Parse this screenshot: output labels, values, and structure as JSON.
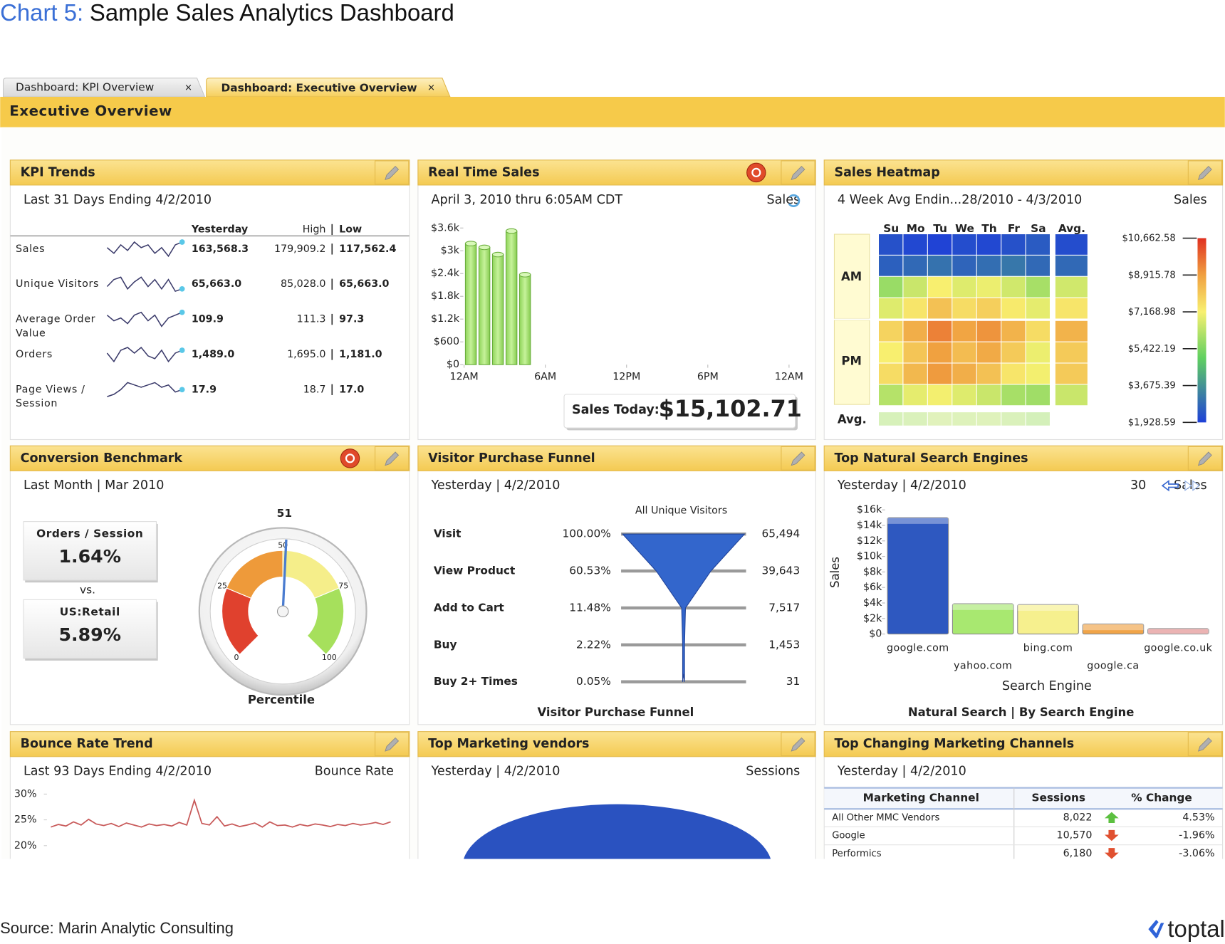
{
  "header": {
    "chart_label": "Chart 5:",
    "title": "Sample Sales Analytics Dashboard"
  },
  "tabs": [
    {
      "label": "Dashboard: KPI Overview",
      "close": "×"
    },
    {
      "label": "Dashboard: Executive Overview",
      "close": "×"
    }
  ],
  "page_title": "Executive Overview",
  "panels": {
    "kpi": {
      "title": "KPI Trends",
      "subtitle": "Last 31 Days Ending 4/2/2010",
      "columns": [
        "Yesterday",
        "High",
        "Low"
      ],
      "rows": [
        {
          "name": [
            "Sales"
          ],
          "yesterday": "163,568.3",
          "high": "179,909.2",
          "low": "117,562.4",
          "trend": [
            5,
            3,
            6,
            4,
            7,
            5,
            6,
            3,
            5,
            2,
            6,
            7
          ]
        },
        {
          "name": [
            "Unique Visitors"
          ],
          "yesterday": "65,663.0",
          "high": "85,028.0",
          "low": "65,663.0",
          "trend": [
            3,
            6,
            7,
            2,
            5,
            7,
            3,
            6,
            2,
            6,
            1,
            2
          ]
        },
        {
          "name": [
            "Average Order",
            "Value"
          ],
          "yesterday": "109.9",
          "high": "111.3",
          "low": "97.3",
          "trend": [
            6,
            4,
            5,
            3,
            6,
            7,
            4,
            6,
            2,
            5,
            6,
            7
          ]
        },
        {
          "name": [
            "Orders"
          ],
          "yesterday": "1,489.0",
          "high": "1,695.0",
          "low": "1,181.0",
          "trend": [
            5,
            2,
            6,
            7,
            5,
            7,
            4,
            3,
            6,
            2,
            5,
            6
          ]
        },
        {
          "name": [
            "Page Views /",
            "Session"
          ],
          "yesterday": "17.9",
          "high": "18.7",
          "low": "17.0",
          "trend": [
            1,
            2,
            4,
            7,
            6,
            5,
            6,
            7,
            5,
            6,
            3,
            4
          ]
        }
      ]
    },
    "realtime": {
      "title": "Real Time Sales",
      "subtitle": "April 3, 2010 thru 6:05AM CDT",
      "measure": "Sales",
      "chart": {
        "type": "bar",
        "x": [
          0.5,
          1.5,
          2.5,
          3.5,
          4.5
        ],
        "values": [
          3190,
          3090,
          2900,
          3520,
          2370
        ],
        "color": "#a8e070",
        "xlim": [
          0,
          24
        ],
        "xticks": [
          {
            "value": 0,
            "label": "12AM"
          },
          {
            "value": 6,
            "label": "6AM"
          },
          {
            "value": 12,
            "label": "12PM"
          },
          {
            "value": 18,
            "label": "6PM"
          },
          {
            "value": 24,
            "label": "12AM"
          }
        ],
        "ylim": [
          0,
          3600
        ],
        "yticks": [
          {
            "value": 0,
            "label": "$0"
          },
          {
            "value": 600,
            "label": "$600"
          },
          {
            "value": 1200,
            "label": "$1.2k"
          },
          {
            "value": 1800,
            "label": "$1.8k"
          },
          {
            "value": 2400,
            "label": "$2.4k"
          },
          {
            "value": 3000,
            "label": "$3k"
          },
          {
            "value": 3600,
            "label": "$3.6k"
          }
        ]
      },
      "today_label": "Sales Today:",
      "today_value": "$15,102.71"
    },
    "heatmap": {
      "title": "Sales Heatmap",
      "subtitle": "4 Week Avg Endin...28/2010 - 4/3/2010",
      "measure": "Sales",
      "chart": {
        "type": "heatmap",
        "columns": [
          "Su",
          "Mo",
          "Tu",
          "We",
          "Th",
          "Fr",
          "Sa",
          "Avg."
        ],
        "row_groups": [
          "AM",
          "PM"
        ],
        "values": [
          [
            2300,
            2100,
            2000,
            2200,
            2100,
            2300,
            2500,
            2200
          ],
          [
            2600,
            2800,
            3000,
            2700,
            2900,
            3100,
            2800,
            2800
          ],
          [
            5800,
            6500,
            7200,
            6800,
            7000,
            6600,
            6000,
            6600
          ],
          [
            6800,
            7400,
            8200,
            7600,
            7900,
            7300,
            6900,
            7400
          ],
          [
            7800,
            8600,
            9400,
            8800,
            9100,
            8500,
            7600,
            8500
          ],
          [
            7200,
            8100,
            8900,
            8300,
            8700,
            8000,
            7000,
            8000
          ],
          [
            7600,
            8400,
            9000,
            8600,
            8200,
            7400,
            7100,
            8000
          ],
          [
            6200,
            6900,
            7100,
            6800,
            6500,
            6000,
            5900,
            6500
          ]
        ],
        "avg_label": "Avg.",
        "avg_row": [
          6000,
          6100,
          6300,
          6200,
          6250,
          6100,
          5900
        ],
        "clim": [
          1928.59,
          10662.58
        ],
        "cticks": [
          {
            "value": 10662.58,
            "label": "$10,662.58"
          },
          {
            "value": 8915.78,
            "label": "$8,915.78"
          },
          {
            "value": 7168.98,
            "label": "$7,168.98"
          },
          {
            "value": 5422.19,
            "label": "$5,422.19"
          },
          {
            "value": 3675.39,
            "label": "$3,675.39"
          },
          {
            "value": 1928.59,
            "label": "$1,928.59"
          }
        ]
      }
    },
    "conversion": {
      "title": "Conversion Benchmark",
      "subtitle": "Last Month | Mar 2010",
      "metric_label": "Orders / Session",
      "metric_value": "1.64%",
      "versus": "vs.",
      "benchmark_label": "US:Retail",
      "benchmark_value": "5.89%",
      "gauge": {
        "type": "gauge",
        "value": 51,
        "range": [
          0,
          100
        ],
        "ticks": [
          0,
          25,
          50,
          75,
          100
        ],
        "label": "Percentile",
        "bands": [
          {
            "from": 0,
            "to": 25,
            "color": "#e0412e"
          },
          {
            "from": 25,
            "to": 50,
            "color": "#ee9a3a"
          },
          {
            "from": 50,
            "to": 75,
            "color": "#f5ee8a"
          },
          {
            "from": 75,
            "to": 100,
            "color": "#a6e05c"
          }
        ]
      }
    },
    "funnel": {
      "title": "Visitor Purchase Funnel",
      "subtitle": "Yesterday | 4/2/2010",
      "column_label": "All Unique Visitors",
      "rows": [
        {
          "stage": "Visit",
          "percent": 100.0,
          "percent_label": "100.00%",
          "count": "65,494"
        },
        {
          "stage": "View Product",
          "percent": 60.53,
          "percent_label": "60.53%",
          "count": "39,643"
        },
        {
          "stage": "Add to Cart",
          "percent": 11.48,
          "percent_label": "11.48%",
          "count": "7,517"
        },
        {
          "stage": "Buy",
          "percent": 2.22,
          "percent_label": "2.22%",
          "count": "1,453"
        },
        {
          "stage": "Buy 2+ Times",
          "percent": 0.05,
          "percent_label": "0.05%",
          "count": "31"
        }
      ],
      "footer": "Visitor Purchase Funnel"
    },
    "search": {
      "title": "Top Natural Search Engines",
      "subtitle": "Yesterday | 4/2/2010",
      "measure": "Sales",
      "count": "30",
      "chart": {
        "type": "bar",
        "categories": [
          "google.com",
          "yahoo.com",
          "bing.com",
          "google.ca",
          "google.co.uk"
        ],
        "values": [
          15000,
          3900,
          3800,
          1300,
          700
        ],
        "colors": [
          "#2e58c0",
          "#a8e870",
          "#f6f08e",
          "#f0a448",
          "#e08a8a"
        ],
        "ylim": [
          0,
          16000
        ],
        "yticks": [
          {
            "value": 0,
            "label": "$0"
          },
          {
            "value": 2000,
            "label": "$2k"
          },
          {
            "value": 4000,
            "label": "$4k"
          },
          {
            "value": 6000,
            "label": "$6k"
          },
          {
            "value": 8000,
            "label": "$8k"
          },
          {
            "value": 10000,
            "label": "$10k"
          },
          {
            "value": 12000,
            "label": "$12k"
          },
          {
            "value": 14000,
            "label": "$14k"
          },
          {
            "value": 16000,
            "label": "$16k"
          }
        ],
        "y_label": "Sales",
        "x_label": "Search Engine"
      },
      "footer": "Natural Search | By Search Engine"
    },
    "bounce": {
      "title": "Bounce Rate Trend",
      "subtitle": "Last 93 Days Ending 4/2/2010",
      "measure": "Bounce Rate",
      "chart": {
        "type": "line",
        "values": [
          23.6,
          24.1,
          23.8,
          24.6,
          24.0,
          25.1,
          24.2,
          23.9,
          24.3,
          23.7,
          24.4,
          24.0,
          23.6,
          24.2,
          23.9,
          24.1,
          23.8,
          24.5,
          24.0,
          28.8,
          24.3,
          24.0,
          25.6,
          23.8,
          24.2,
          23.7,
          24.0,
          24.4,
          23.6,
          24.6,
          23.9,
          24.0,
          23.6,
          24.1,
          23.8,
          24.2,
          24.0,
          23.7,
          24.1,
          23.9,
          24.3,
          24.0,
          24.2,
          24.5,
          24.1,
          24.6
        ],
        "color": "#c85a5a",
        "ylim": [
          20,
          30
        ],
        "yticks": [
          {
            "value": 30,
            "label": "30%"
          },
          {
            "value": 25,
            "label": "25%"
          },
          {
            "value": 20,
            "label": "20%"
          }
        ]
      }
    },
    "vendors": {
      "title": "Top Marketing vendors",
      "subtitle": "Yesterday | 4/2/2010",
      "measure": "Sessions"
    },
    "channels": {
      "title": "Top Changing Marketing Channels",
      "subtitle": "Yesterday | 4/2/2010",
      "columns": [
        "Marketing Channel",
        "Sessions",
        "% Change"
      ],
      "rows": [
        {
          "channel": "All Other MMC Vendors",
          "sessions": "8,022",
          "direction": "up",
          "change": "4.53%"
        },
        {
          "channel": "Google",
          "sessions": "10,570",
          "direction": "down",
          "change": "-1.96%"
        },
        {
          "channel": "Performics",
          "sessions": "6,180",
          "direction": "down",
          "change": "-3.06%"
        }
      ]
    }
  },
  "footer": {
    "source": "Source: Marin Analytic Consulting",
    "brand": "toptal"
  }
}
